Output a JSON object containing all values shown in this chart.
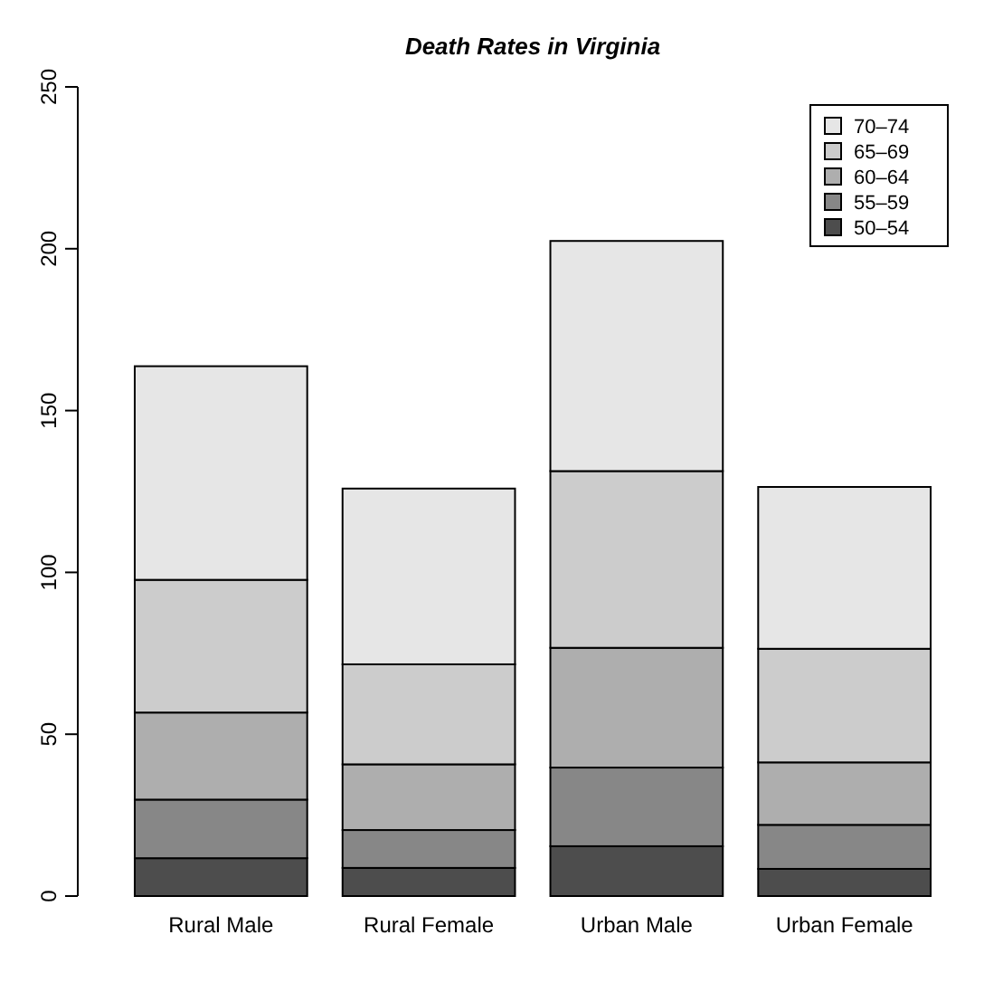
{
  "chart_data": {
    "type": "bar",
    "title": "Death Rates in Virginia",
    "categories": [
      "Rural Male",
      "Rural Female",
      "Urban Male",
      "Urban Female"
    ],
    "stacked": true,
    "ylim": [
      0,
      250
    ],
    "yticks": [
      0,
      50,
      100,
      150,
      200,
      250
    ],
    "legend": "top right",
    "grid": false,
    "series": [
      {
        "name": "50–54",
        "color": "#4d4d4d",
        "values": [
          11.7,
          8.7,
          15.4,
          8.4
        ]
      },
      {
        "name": "55–59",
        "color": "#878787",
        "values": [
          18.1,
          11.7,
          24.3,
          13.6
        ]
      },
      {
        "name": "60–64",
        "color": "#aeaeae",
        "values": [
          26.9,
          20.3,
          37.0,
          19.3
        ]
      },
      {
        "name": "65–69",
        "color": "#cccccc",
        "values": [
          41.0,
          30.9,
          54.6,
          35.1
        ]
      },
      {
        "name": "70–74",
        "color": "#e6e6e6",
        "values": [
          66.0,
          54.3,
          71.1,
          50.0
        ]
      }
    ]
  }
}
